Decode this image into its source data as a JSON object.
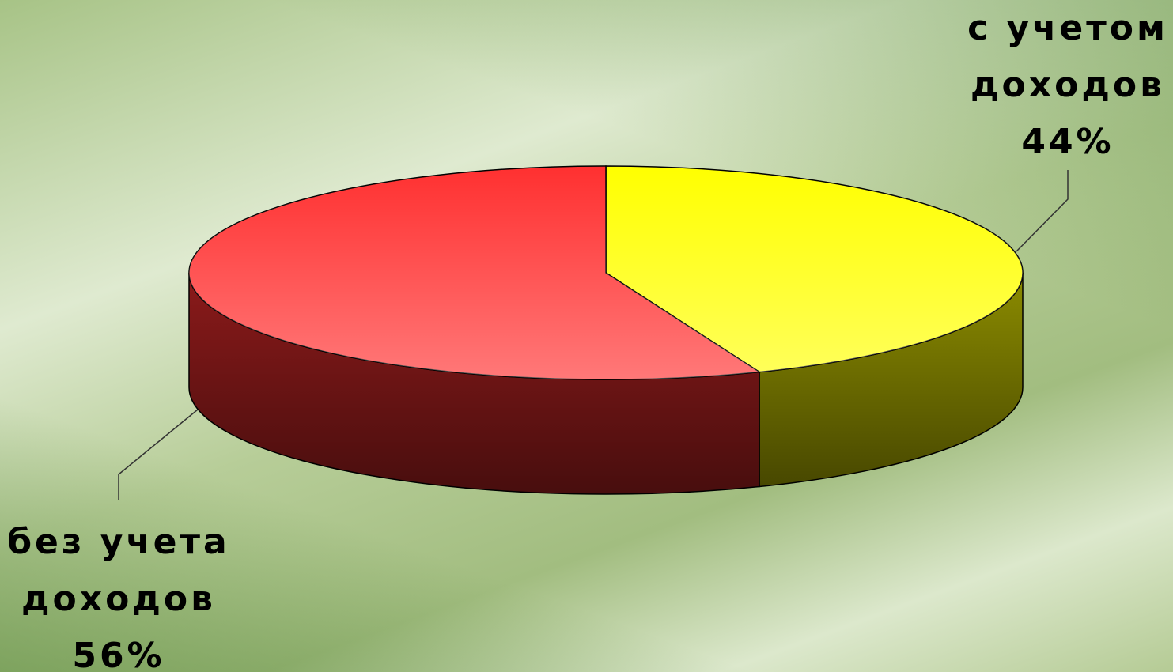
{
  "chart_data": {
    "type": "pie3d",
    "categories": [
      "с учетом доходов",
      "без учета доходов"
    ],
    "values": [
      44,
      56
    ],
    "value_labels": [
      "44%",
      "56%"
    ],
    "colors": [
      "#ffff00",
      "#ff3030"
    ]
  }
}
